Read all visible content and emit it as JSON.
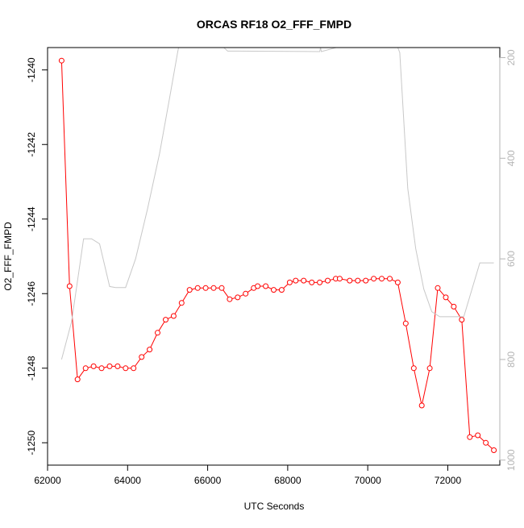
{
  "chart_data": {
    "type": "line",
    "title": "ORCAS RF18 O2_FFF_FMPD",
    "xlabel": "UTC Seconds",
    "ylabel": "O2_FFF_FMPD",
    "xlim": [
      62000,
      73300
    ],
    "ylim": [
      -1250.6,
      -1239.4
    ],
    "y2lim": [
      1010,
      180
    ],
    "x_ticks": [
      {
        "value": 62000,
        "label": "62000"
      },
      {
        "value": 64000,
        "label": "64000"
      },
      {
        "value": 66000,
        "label": "66000"
      },
      {
        "value": 68000,
        "label": "68000"
      },
      {
        "value": 70000,
        "label": "70000"
      },
      {
        "value": 72000,
        "label": "72000"
      }
    ],
    "y_ticks": [
      {
        "value": -1240,
        "label": "-1240"
      },
      {
        "value": -1242,
        "label": "-1242"
      },
      {
        "value": -1244,
        "label": "-1244"
      },
      {
        "value": -1246,
        "label": "-1246"
      },
      {
        "value": -1248,
        "label": "-1248"
      },
      {
        "value": -1250,
        "label": "-1250"
      }
    ],
    "y2_ticks": [
      {
        "value": 200,
        "label": "200"
      },
      {
        "value": 400,
        "label": "400"
      },
      {
        "value": 600,
        "label": "600"
      },
      {
        "value": 800,
        "label": "800"
      },
      {
        "value": 1000,
        "label": "1000"
      }
    ],
    "grid": false,
    "series": [
      {
        "color": "#ff0000",
        "marker": "open-circle",
        "x": [
          62350,
          62550,
          62750,
          62950,
          63150,
          63350,
          63550,
          63750,
          63950,
          64150,
          64350,
          64550,
          64750,
          64950,
          65150,
          65350,
          65550,
          65750,
          65950,
          66150,
          66350,
          66550,
          66750,
          66950,
          67150,
          67250,
          67450,
          67650,
          67850,
          68050,
          68200,
          68400,
          68600,
          68800,
          69000,
          69200,
          69300,
          69550,
          69750,
          69950,
          70150,
          70350,
          70550,
          70750,
          70950,
          71150,
          71350,
          71550,
          71750,
          71950,
          72150,
          72350,
          72550,
          72750,
          72950,
          73150
        ],
        "values": [
          -1239.75,
          -1245.8,
          -1248.3,
          -1248.0,
          -1247.95,
          -1248.0,
          -1247.95,
          -1247.95,
          -1248.0,
          -1248.0,
          -1247.7,
          -1247.5,
          -1247.05,
          -1246.7,
          -1246.6,
          -1246.25,
          -1245.9,
          -1245.85,
          -1245.85,
          -1245.85,
          -1245.85,
          -1246.15,
          -1246.1,
          -1246.0,
          -1245.85,
          -1245.8,
          -1245.8,
          -1245.9,
          -1245.9,
          -1245.7,
          -1245.65,
          -1245.65,
          -1245.7,
          -1245.7,
          -1245.65,
          -1245.6,
          -1245.6,
          -1245.65,
          -1245.65,
          -1245.65,
          -1245.6,
          -1245.6,
          -1245.6,
          -1245.7,
          -1246.8,
          -1248.0,
          -1249.0,
          -1248.0,
          -1245.85,
          -1246.1,
          -1246.35,
          -1246.7,
          -1249.85,
          -1249.8,
          -1250.0,
          -1250.2
        ]
      },
      {
        "color": "#c8c8c8",
        "axis": "right",
        "x": [
          62350,
          62600,
          62900,
          63100,
          63300,
          63550,
          63700,
          63950,
          64200,
          64500,
          64800,
          65050,
          65250,
          65450,
          66500,
          66750,
          68800,
          68820,
          68840,
          70600,
          70800,
          71000,
          71200,
          71400,
          71600,
          71800,
          72000,
          72200,
          72400,
          72800,
          73000,
          73150
        ],
        "values": [
          800,
          725,
          560,
          560,
          570,
          655,
          657,
          657,
          600,
          500,
          390,
          280,
          190,
          110,
          187,
          187,
          188,
          180,
          188,
          150,
          190,
          460,
          580,
          660,
          705,
          715,
          715,
          715,
          715,
          608,
          608,
          608
        ]
      }
    ]
  }
}
